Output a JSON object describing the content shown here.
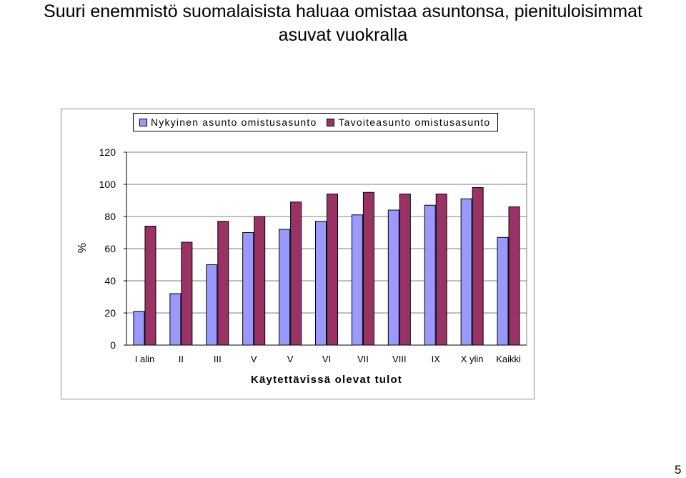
{
  "slide": {
    "title_line1": "Suuri enemmistö suomalaisista haluaa omistaa asuntonsa, pienituloisimmat",
    "title_line2": "asuvat vuokralla",
    "page_number": "5"
  },
  "chart_data": {
    "type": "bar",
    "title": "",
    "xlabel": "Käytettävissä olevat tulot",
    "ylabel": "%",
    "ylim": [
      0,
      120
    ],
    "yticks": [
      0,
      20,
      40,
      60,
      80,
      100,
      120
    ],
    "categories": [
      "I alin",
      "II",
      "III",
      "V",
      "V",
      "VI",
      "VII",
      "VIII",
      "IX",
      "X ylin",
      "Kaikki"
    ],
    "series": [
      {
        "name": "Nykyinen asunto omistusasunto",
        "color": "#9999ff",
        "values": [
          21,
          32,
          50,
          70,
          72,
          77,
          81,
          84,
          87,
          91,
          67
        ]
      },
      {
        "name": "Tavoiteasunto omistusasunto",
        "color": "#993366",
        "values": [
          74,
          64,
          77,
          80,
          89,
          94,
          95,
          94,
          94,
          98,
          86
        ]
      }
    ],
    "grid": true,
    "legend_position": "top"
  }
}
